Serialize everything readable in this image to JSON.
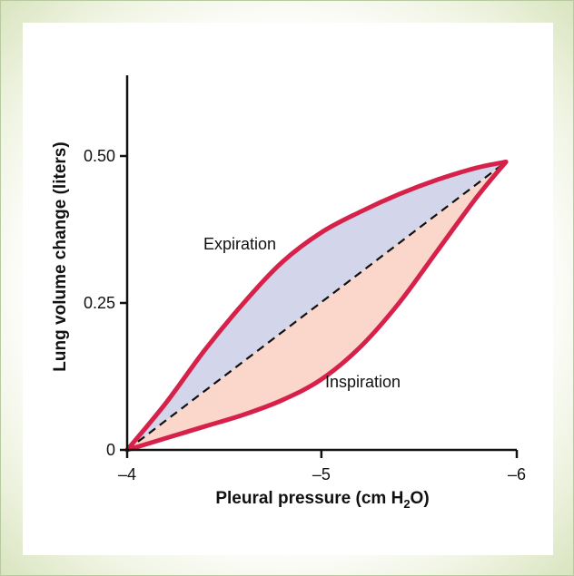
{
  "chart_data": {
    "type": "line",
    "title": "",
    "xlabel": "Pleural pressure (cm H",
    "xlabel_sub": "2",
    "xlabel_end": "O)",
    "ylabel": "Lung volume change (liters)",
    "x_ticks": [
      -4,
      -5,
      -6
    ],
    "x_tick_labels": [
      "–4",
      "–5",
      "–6"
    ],
    "y_ticks": [
      0,
      0.25,
      0.5
    ],
    "y_tick_labels": [
      "0",
      "0.25",
      "0.50"
    ],
    "xlim": [
      -4,
      -6
    ],
    "ylim": [
      0,
      0.63
    ],
    "series": [
      {
        "name": "Expiration",
        "x": [
          -4,
          -4.2,
          -4.4,
          -4.6,
          -4.8,
          -5.0,
          -5.2,
          -5.4,
          -5.6,
          -5.8,
          -5.95
        ],
        "y": [
          0,
          0.08,
          0.17,
          0.25,
          0.32,
          0.37,
          0.405,
          0.435,
          0.46,
          0.48,
          0.49
        ]
      },
      {
        "name": "Inspiration",
        "x": [
          -4,
          -4.2,
          -4.4,
          -4.6,
          -4.8,
          -5.0,
          -5.2,
          -5.4,
          -5.6,
          -5.8,
          -5.95
        ],
        "y": [
          0,
          0.02,
          0.04,
          0.06,
          0.085,
          0.12,
          0.175,
          0.25,
          0.34,
          0.43,
          0.49
        ]
      }
    ],
    "reference_line": {
      "x": [
        -4,
        -5.95
      ],
      "y": [
        0,
        0.49
      ]
    },
    "colors": {
      "curve": "#d6224a",
      "expiration_fill": "#d3d6ea",
      "inspiration_fill": "#fbd7cb",
      "reference": "#111111",
      "background_border": "#c9d8ab"
    }
  }
}
